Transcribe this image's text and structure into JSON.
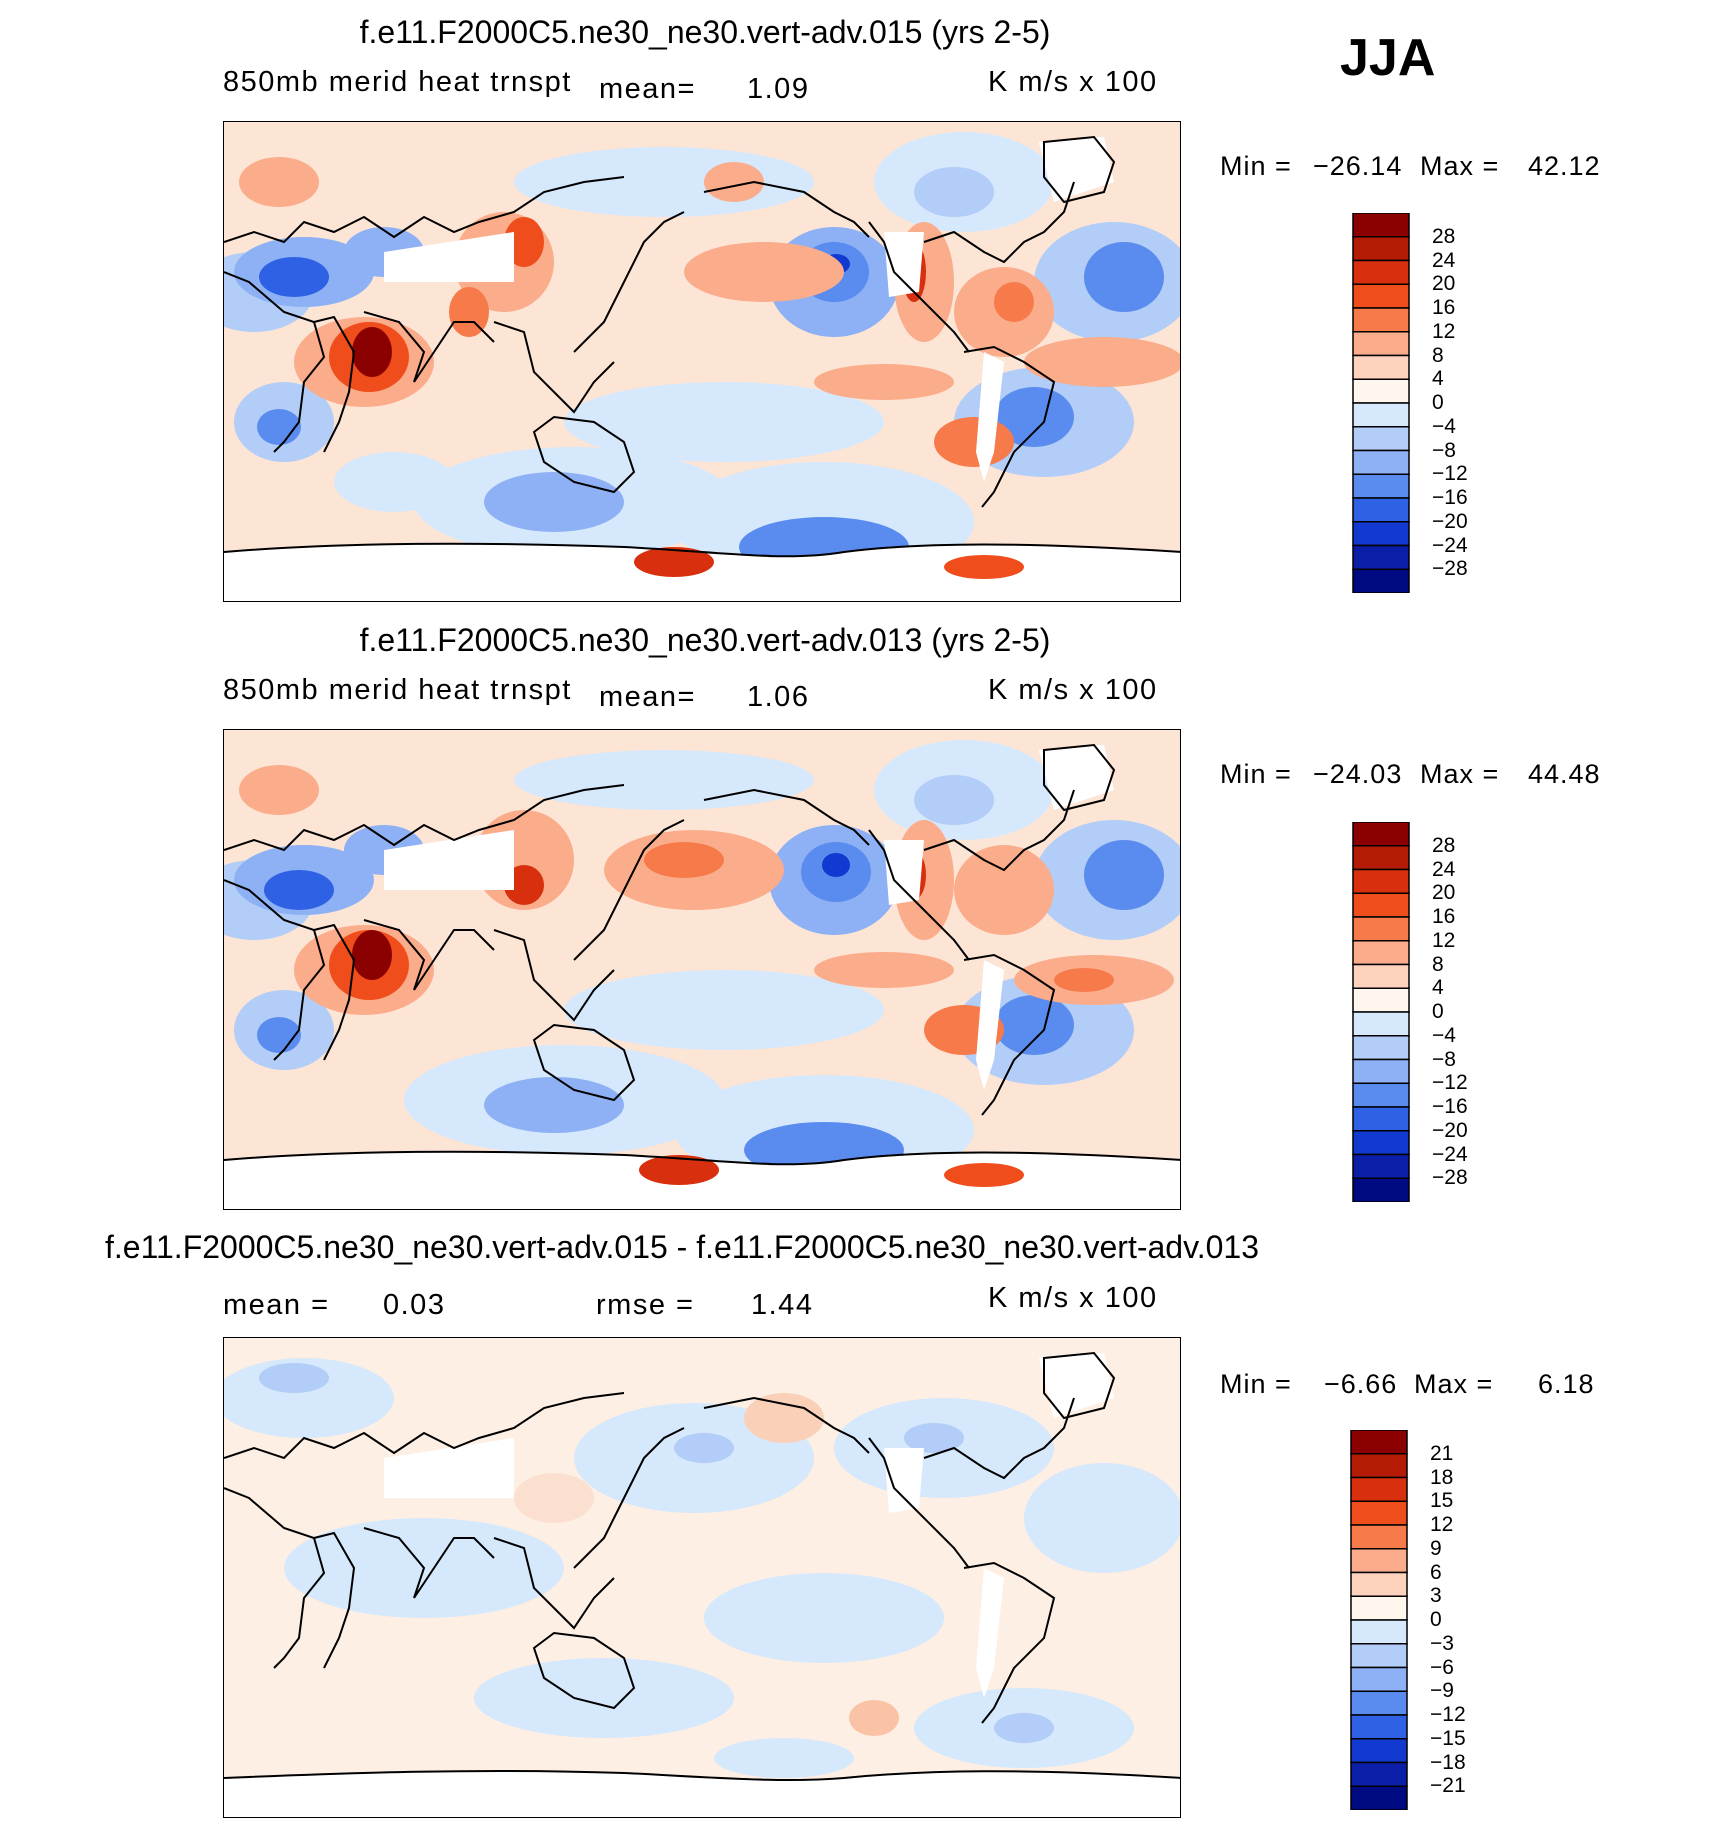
{
  "season": "JJA",
  "panels": [
    {
      "title": "f.e11.F2000C5.ne30_ne30.vert-adv.015 (yrs 2-5)",
      "variable": "850mb  merid  heat  trnspt",
      "mean_label": "mean=",
      "mean_value": "1.09",
      "units": "K  m/s  x  100",
      "min_label": "Min  =",
      "min_value": "−26.14",
      "max_label": "Max  =",
      "max_value": "42.12",
      "levels": [
        "28",
        "24",
        "20",
        "16",
        "12",
        "8",
        "4",
        "0",
        "−4",
        "−8",
        "−12",
        "−16",
        "−20",
        "−24",
        "−28"
      ]
    },
    {
      "title": "f.e11.F2000C5.ne30_ne30.vert-adv.013 (yrs 2-5)",
      "variable": "850mb  merid  heat  trnspt",
      "mean_label": "mean=",
      "mean_value": "1.06",
      "units": "K  m/s  x  100",
      "min_label": "Min  =",
      "min_value": "−24.03",
      "max_label": "Max  =",
      "max_value": "44.48",
      "levels": [
        "28",
        "24",
        "20",
        "16",
        "12",
        "8",
        "4",
        "0",
        "−4",
        "−8",
        "−12",
        "−16",
        "−20",
        "−24",
        "−28"
      ]
    },
    {
      "title": "f.e11.F2000C5.ne30_ne30.vert-adv.015 - f.e11.F2000C5.ne30_ne30.vert-adv.013",
      "mean_label": "mean  =",
      "mean_value": "0.03",
      "rmse_label": "rmse  =",
      "rmse_value": "1.44",
      "units": "K  m/s  x  100",
      "min_label": "Min  =",
      "min_value": "−6.66",
      "max_label": "Max  =",
      "max_value": "6.18",
      "levels": [
        "21",
        "18",
        "15",
        "12",
        "9",
        "6",
        "3",
        "0",
        "−3",
        "−6",
        "−9",
        "−12",
        "−15",
        "−18",
        "−21"
      ]
    }
  ],
  "colors": {
    "scale": [
      "#8b0000",
      "#b51c06",
      "#d8300e",
      "#f04d1c",
      "#f77b4a",
      "#fbac8a",
      "#fdd3bd",
      "#fff6ee",
      "#d6e8fb",
      "#b2cdf7",
      "#8db1f4",
      "#5a8bee",
      "#2e61e4",
      "#1239d0",
      "#0a1ea8",
      "#000a80"
    ]
  }
}
